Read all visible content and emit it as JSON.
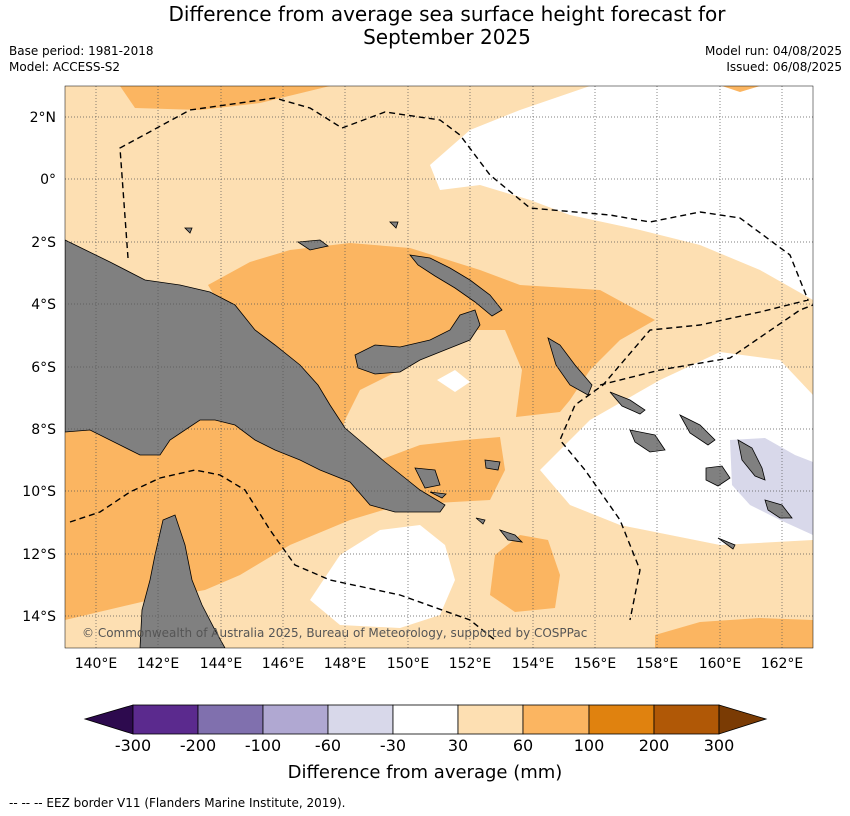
{
  "title_line1": "Difference from average sea surface height forecast for",
  "title_line2": "September 2025",
  "base_period": "Base period: 1981-2018",
  "model": "Model: ACCESS-S2",
  "model_run": "Model run: 04/08/2025",
  "issued": "Issued: 06/08/2025",
  "copyright": "© Commonwealth of Australia 2025, Bureau of Meteorology, supported by COSPPac",
  "lon_ticks": [
    "140°E",
    "142°E",
    "144°E",
    "146°E",
    "148°E",
    "150°E",
    "152°E",
    "154°E",
    "156°E",
    "158°E",
    "160°E",
    "162°E"
  ],
  "lat_ticks": [
    "2°N",
    "0°",
    "2°S",
    "4°S",
    "6°S",
    "8°S",
    "10°S",
    "12°S",
    "14°S"
  ],
  "colorbar": {
    "label": "Difference from average (mm)",
    "ticks": [
      "-300",
      "-200",
      "-100",
      "-60",
      "-30",
      "30",
      "60",
      "100",
      "200",
      "300"
    ],
    "colors": [
      "#2d0a4e",
      "#5b2a8e",
      "#8070ae",
      "#b0a8d2",
      "#d8d8ea",
      "#ffffff",
      "#fddfb2",
      "#fbb561",
      "#e0820f",
      "#b05806",
      "#7a3b04"
    ]
  },
  "footnote": "-- -- -- EEZ border V11 (Flanders Marine Institute, 2019).",
  "colors": {
    "land": "#808080",
    "band_30_60": "#fddfb2",
    "band_60_100": "#fbb561",
    "band_m60_m30": "#d8d8ea",
    "ocean_neutral": "#ffffff"
  }
}
